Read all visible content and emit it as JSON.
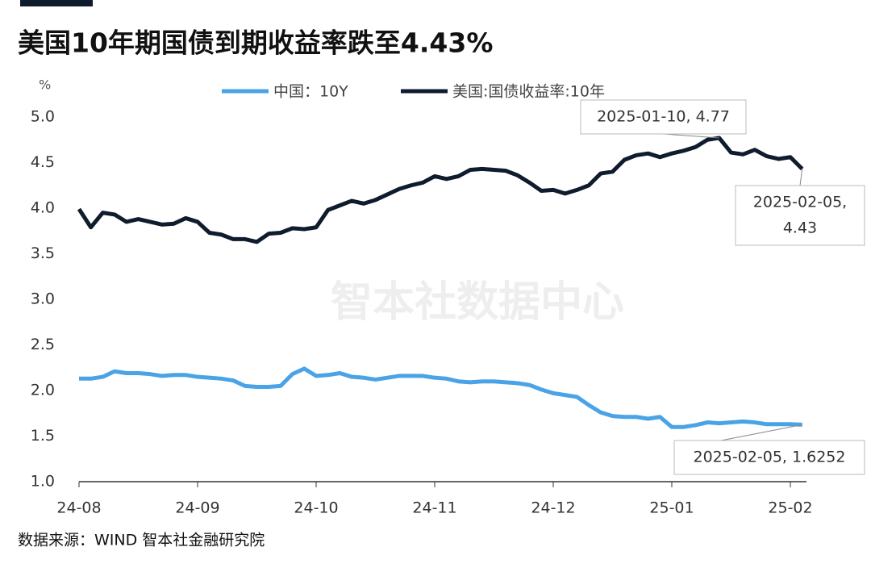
{
  "chart_data": {
    "type": "line",
    "title": "美国10年期国债到期收益率跌至4.43%",
    "y_unit": "%",
    "source": "数据来源：WIND 智本社金融研究院",
    "watermark": "智本社数据中心",
    "categories": [
      "24-08",
      null,
      null,
      null,
      null,
      null,
      null,
      null,
      null,
      null,
      "24-09",
      null,
      null,
      null,
      null,
      null,
      null,
      null,
      null,
      null,
      "24-10",
      null,
      null,
      null,
      null,
      null,
      null,
      null,
      null,
      null,
      "24-11",
      null,
      null,
      null,
      null,
      null,
      null,
      null,
      null,
      null,
      "24-12",
      null,
      null,
      null,
      null,
      null,
      null,
      null,
      null,
      null,
      "25-01",
      null,
      null,
      null,
      null,
      null,
      null,
      null,
      null,
      null,
      "25-02",
      null
    ],
    "series": [
      {
        "name": "中国：10Y",
        "color": "#4aa3e6",
        "values": [
          2.13,
          2.13,
          2.15,
          2.21,
          2.19,
          2.19,
          2.18,
          2.16,
          2.17,
          2.17,
          2.15,
          2.14,
          2.13,
          2.11,
          2.05,
          2.04,
          2.04,
          2.05,
          2.18,
          2.24,
          2.16,
          2.17,
          2.19,
          2.15,
          2.14,
          2.12,
          2.14,
          2.16,
          2.16,
          2.16,
          2.14,
          2.13,
          2.1,
          2.09,
          2.1,
          2.1,
          2.09,
          2.08,
          2.06,
          2.01,
          1.97,
          1.95,
          1.93,
          1.84,
          1.76,
          1.72,
          1.71,
          1.71,
          1.69,
          1.71,
          1.6,
          1.6,
          1.62,
          1.65,
          1.64,
          1.65,
          1.66,
          1.65,
          1.63,
          1.63,
          1.63,
          1.6252
        ]
      },
      {
        "name": "美国:国债收益率:10年",
        "color": "#0f1c2e",
        "values": [
          3.99,
          3.79,
          3.95,
          3.93,
          3.85,
          3.88,
          3.85,
          3.82,
          3.83,
          3.89,
          3.85,
          3.73,
          3.71,
          3.66,
          3.66,
          3.63,
          3.72,
          3.73,
          3.78,
          3.77,
          3.79,
          3.98,
          4.03,
          4.08,
          4.05,
          4.09,
          4.15,
          4.21,
          4.25,
          4.28,
          4.35,
          4.32,
          4.35,
          4.42,
          4.43,
          4.42,
          4.41,
          4.36,
          4.28,
          4.19,
          4.2,
          4.16,
          4.2,
          4.25,
          4.38,
          4.4,
          4.53,
          4.58,
          4.6,
          4.56,
          4.6,
          4.63,
          4.67,
          4.75,
          4.77,
          4.61,
          4.59,
          4.64,
          4.57,
          4.54,
          4.56,
          4.43
        ]
      }
    ],
    "annotations": [
      {
        "lines": [
          "2025-01-10, 4.77"
        ]
      },
      {
        "lines": [
          "2025-02-05,",
          "4.43"
        ]
      },
      {
        "lines": [
          "2025-02-05, 1.6252"
        ]
      }
    ],
    "ylim": [
      1,
      5
    ],
    "yticks": [
      {
        "value": 1,
        "label": "1.0"
      },
      {
        "value": 1.5,
        "label": "1.5"
      },
      {
        "value": 2,
        "label": "2.0"
      },
      {
        "value": 2.5,
        "label": "2.5"
      },
      {
        "value": 3,
        "label": "3.0"
      },
      {
        "value": 3.5,
        "label": "3.5"
      },
      {
        "value": 4,
        "label": "4.0"
      },
      {
        "value": 4.5,
        "label": "4.5"
      },
      {
        "value": 5,
        "label": "5.0"
      }
    ],
    "grid": false
  }
}
